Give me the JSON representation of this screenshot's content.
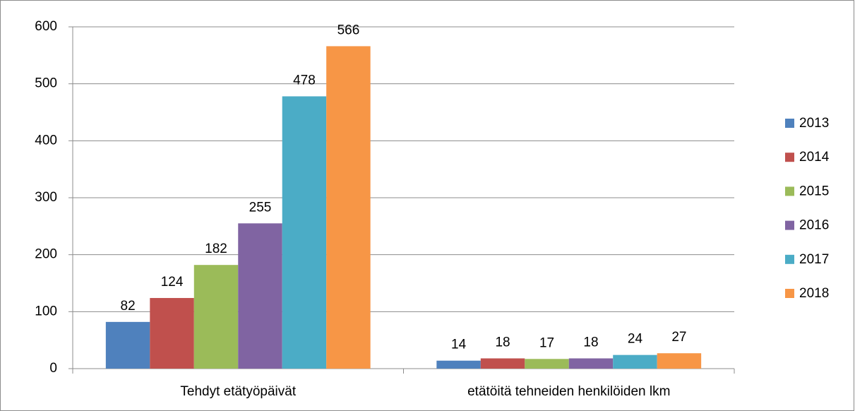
{
  "chart_data": {
    "type": "bar",
    "categories": [
      "Tehdyt etätyöpäivät",
      "etätöitä tehneiden henkilöiden lkm"
    ],
    "series": [
      {
        "name": "2013",
        "color": "#4f81bd",
        "values": [
          82,
          14
        ]
      },
      {
        "name": "2014",
        "color": "#c0504d",
        "values": [
          124,
          18
        ]
      },
      {
        "name": "2015",
        "color": "#9bbb59",
        "values": [
          182,
          17
        ]
      },
      {
        "name": "2016",
        "color": "#8064a2",
        "values": [
          255,
          18
        ]
      },
      {
        "name": "2017",
        "color": "#4bacc6",
        "values": [
          478,
          24
        ]
      },
      {
        "name": "2018",
        "color": "#f79646",
        "values": [
          566,
          27
        ]
      }
    ],
    "ylim": [
      0,
      600
    ],
    "yticks": [
      0,
      100,
      200,
      300,
      400,
      500,
      600
    ],
    "grid": true,
    "legend": "right"
  }
}
